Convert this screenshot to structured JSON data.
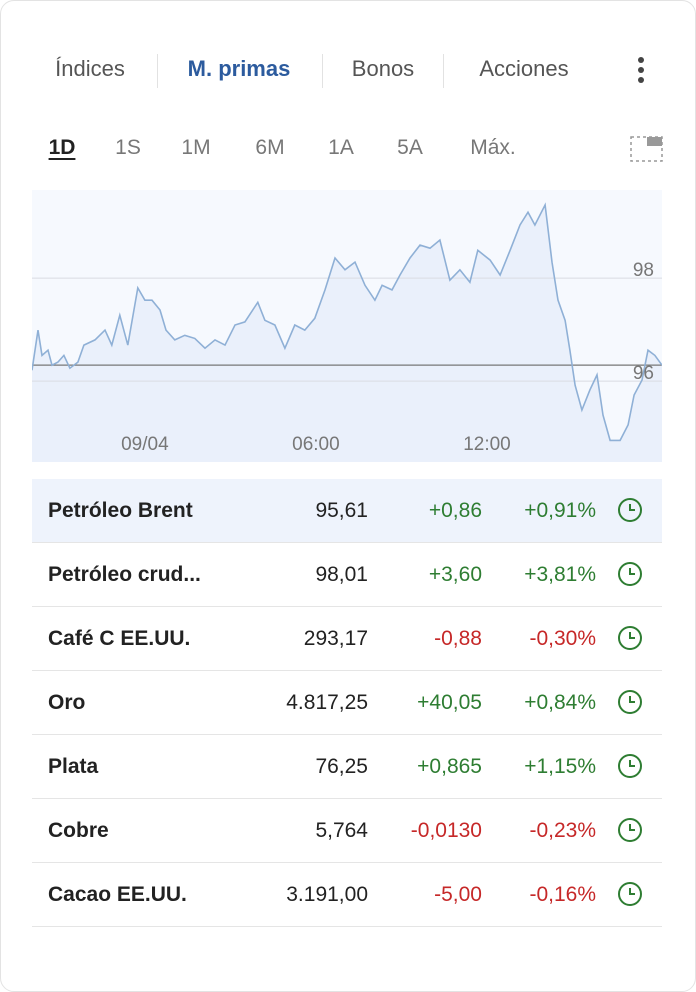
{
  "tabs": [
    "Índices",
    "M. primas",
    "Bonos",
    "Acciones"
  ],
  "periods": [
    "1D",
    "1S",
    "1M",
    "6M",
    "1A",
    "5A",
    "Máx."
  ],
  "chart_data": {
    "type": "line",
    "x": [
      -3.96,
      -3.75,
      -3.61,
      -3.4,
      -3.26,
      -3.05,
      -2.84,
      -2.63,
      -2.35,
      -2.14,
      -1.75,
      -1.4,
      -1.16,
      -0.88,
      -0.6,
      -0.25,
      0,
      0.25,
      0.53,
      0.74,
      1.05,
      1.4,
      1.75,
      2.11,
      2.46,
      2.81,
      3.16,
      3.51,
      3.96,
      4.21,
      4.56,
      4.91,
      5.26,
      5.61,
      5.96,
      6.32,
      6.67,
      7.02,
      7.37,
      7.72,
      8.07,
      8.32,
      8.67,
      8.95,
      9.3,
      9.65,
      10.0,
      10.35,
      10.7,
      11.05,
      11.4,
      11.68,
      12.11,
      12.46,
      12.81,
      13.16,
      13.44,
      13.68,
      14.04,
      14.28,
      14.49,
      14.74,
      14.91,
      15.09,
      15.33,
      15.61,
      15.86,
      16.07,
      16.32,
      16.67,
      16.95,
      17.16,
      17.44,
      17.65,
      17.89,
      18.14
    ],
    "series": [
      {
        "color": "#8fb0d6",
        "values": [
          96.21,
          96.99,
          96.5,
          96.6,
          96.31,
          96.37,
          96.5,
          96.25,
          96.37,
          96.7,
          96.8,
          96.99,
          96.7,
          97.28,
          96.7,
          97.81,
          97.57,
          97.57,
          97.38,
          96.99,
          96.8,
          96.89,
          96.83,
          96.64,
          96.8,
          96.7,
          97.09,
          97.15,
          97.53,
          97.18,
          97.09,
          96.64,
          97.09,
          96.99,
          97.22,
          97.77,
          98.39,
          98.16,
          98.31,
          97.86,
          97.57,
          97.86,
          97.77,
          98.06,
          98.39,
          98.64,
          98.58,
          98.74,
          97.96,
          98.16,
          97.92,
          98.54,
          98.35,
          98.06,
          98.54,
          99.03,
          99.28,
          99.03,
          99.42,
          98.31,
          97.57,
          97.18,
          96.6,
          95.92,
          95.44,
          95.83,
          96.12,
          95.34,
          94.85,
          94.85,
          95.15,
          95.73,
          96.02,
          96.6,
          96.5,
          96.31
        ]
      }
    ],
    "xlim": [
      -3.96,
      18.14
    ],
    "ylim": [
      94.43,
      99.71
    ],
    "xticks": [
      {
        "value": 0,
        "label": "09/04"
      },
      {
        "value": 6,
        "label": "06:00"
      },
      {
        "value": 12,
        "label": "12:00"
      }
    ],
    "yticks": [
      96,
      98
    ],
    "grid": true,
    "reference_line": 96.31
  },
  "table": {
    "rows": [
      [
        "Petróleo Brent",
        "95,61",
        "+0,86",
        "+0,91%"
      ],
      [
        "Petróleo crud...",
        "98,01",
        "+3,60",
        "+3,81%"
      ],
      [
        "Café C EE.UU.",
        "293,17",
        "-0,88",
        "-0,30%"
      ],
      [
        "Oro",
        "4.817,25",
        "+40,05",
        "+0,84%"
      ],
      [
        "Plata",
        "76,25",
        "+0,865",
        "+1,15%"
      ],
      [
        "Cobre",
        "5,764",
        "-0,0130",
        "-0,23%"
      ],
      [
        "Cacao EE.UU.",
        "3.191,00",
        "-5,00",
        "-0,16%"
      ]
    ]
  }
}
